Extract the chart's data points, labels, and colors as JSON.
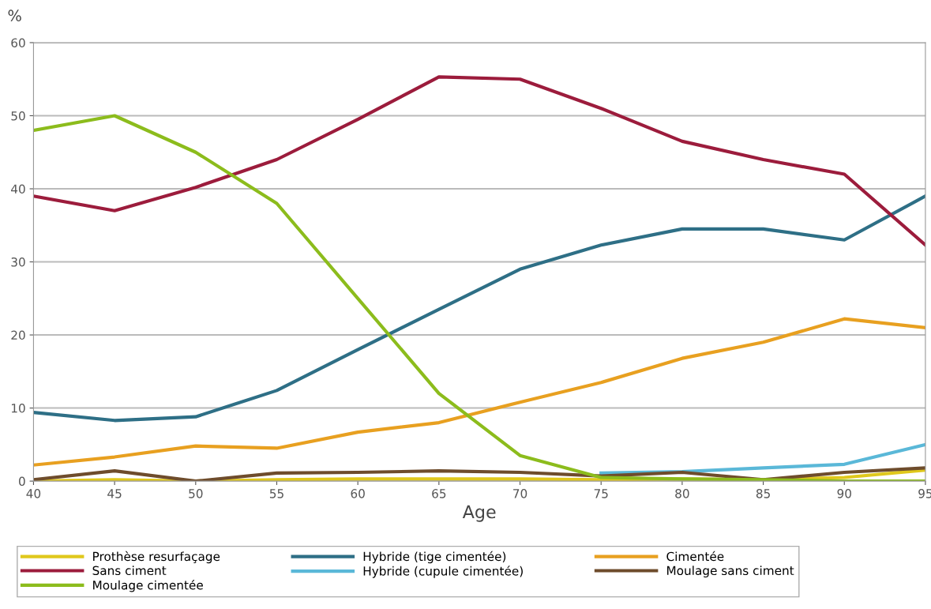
{
  "chart_data": {
    "type": "line",
    "ylabel": "%",
    "xlabel": "Age",
    "x": [
      40,
      45,
      50,
      55,
      60,
      65,
      70,
      75,
      80,
      85,
      90,
      95
    ],
    "xlim": [
      40,
      95
    ],
    "xticks": [
      40,
      45,
      50,
      55,
      60,
      65,
      70,
      75,
      80,
      85,
      90,
      95
    ],
    "ylim": [
      0,
      60
    ],
    "yticks": [
      0,
      10,
      20,
      30,
      40,
      50,
      60
    ],
    "grid": "y",
    "legend": "bottom",
    "marker": "none",
    "line_style": "solid",
    "series": [
      {
        "name": "Prothèse resurfaçage",
        "color": "#e0c81c",
        "values": [
          0,
          0.2,
          0,
          0.2,
          0.3,
          0.3,
          0.3,
          0.2,
          0.3,
          0.2,
          0.5,
          1.5
        ]
      },
      {
        "name": "Hybride (tige cimentée)",
        "color": "#2e6f86",
        "values": [
          9.4,
          8.3,
          8.8,
          12.4,
          18,
          23.5,
          29,
          32.3,
          34.5,
          34.5,
          33,
          39
        ]
      },
      {
        "name": "Cimentée",
        "color": "#e8a020",
        "values": [
          2.2,
          3.3,
          4.8,
          4.5,
          6.7,
          8,
          10.8,
          13.5,
          16.8,
          19,
          22.2,
          21
        ]
      },
      {
        "name": "Sans ciment",
        "color": "#9c1c3c",
        "values": [
          39,
          37,
          40.2,
          44,
          49.5,
          55.3,
          55,
          51,
          46.5,
          44,
          42,
          32.3
        ]
      },
      {
        "name": "Hybride (cupule cimentée)",
        "color": "#5ab8d8",
        "values": [
          null,
          null,
          null,
          null,
          null,
          null,
          null,
          1.1,
          1.3,
          1.8,
          2.3,
          5
        ]
      },
      {
        "name": "Moulage sans ciment",
        "color": "#6e4c2c",
        "values": [
          0.2,
          1.4,
          0,
          1.1,
          1.2,
          1.4,
          1.2,
          0.7,
          1.2,
          0.2,
          1.2,
          1.8
        ]
      },
      {
        "name": "Moulage cimentée",
        "color": "#8cbc1c",
        "values": [
          48,
          50,
          45,
          38,
          25,
          12,
          3.5,
          0.5,
          0.3,
          0.2,
          0,
          0
        ]
      }
    ]
  }
}
